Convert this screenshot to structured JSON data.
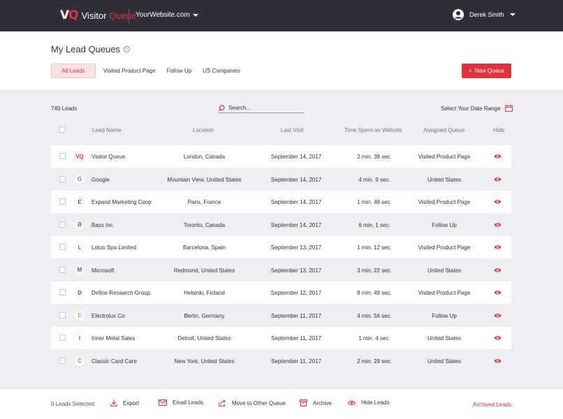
{
  "header": {
    "logo_mark_v": "V",
    "logo_mark_q": "Q",
    "logo_word1": "Visitor",
    "logo_word2": "Queue",
    "site": "YourWebsite.com",
    "user_name": "Derek Smith"
  },
  "page": {
    "title": "My Lead Queues",
    "tabs": [
      "All Leads",
      "Visited Product Page",
      "Follow Up",
      "US Companies"
    ],
    "new_queue_label": "New Queue"
  },
  "toolbar": {
    "lead_count": "749 Leads",
    "search_placeholder": "Search...",
    "date_range_label": "Select Your Date Range"
  },
  "table": {
    "columns": [
      "Lead Name",
      "Location",
      "Last Visit",
      "Time Spent on Website",
      "Assigned Queue",
      "Hide"
    ],
    "rows": [
      {
        "logo": "VQ",
        "name": "Visitor Queue",
        "location": "London, Canada",
        "last_visit": "September 14, 2017",
        "time": "2 min. 38 sec.",
        "queue": "Visited Product Page"
      },
      {
        "logo": "G",
        "name": "Google",
        "location": "Mountain View, Uniited States",
        "last_visit": "September 14, 2017",
        "time": "4 min. 9 sec.",
        "queue": "United States"
      },
      {
        "logo": "E",
        "name": "Expand Marketing Coop",
        "location": "Paris, France",
        "last_visit": "September 14, 2017",
        "time": "1 min. 48 sec.",
        "queue": "Visited Product Page"
      },
      {
        "logo": "B",
        "name": "Bass Inc.",
        "location": "Toronto, Canada",
        "last_visit": "September 14, 2017",
        "time": "6 min. 1 sec.",
        "queue": "Follow Up"
      },
      {
        "logo": "L",
        "name": "Lotus Spa Limited",
        "location": "Barcelona, Spain",
        "last_visit": "September 13, 2017",
        "time": "1 min. 12 sec.",
        "queue": "Visited Product Page"
      },
      {
        "logo": "M",
        "name": "Microsoft",
        "location": "Redmond, United States",
        "last_visit": "September 13, 2017",
        "time": "3 min. 22 sec.",
        "queue": "United States"
      },
      {
        "logo": "D",
        "name": "Define Research Group",
        "location": "Helsinki, Finland",
        "last_visit": "September 12, 2017",
        "time": "8 min. 49 sec.",
        "queue": "Visited Product Page"
      },
      {
        "logo": "E",
        "name": "Electrolux Co",
        "location": "Berlin, Germany",
        "last_visit": "September 11, 2017",
        "time": "4 min. 56 sec.",
        "queue": "Follow Up"
      },
      {
        "logo": "I",
        "name": "Inner Metal Sales",
        "location": "Detroit, United States",
        "last_visit": "September 11, 2017",
        "time": "1 min. 4 sec.",
        "queue": "United States"
      },
      {
        "logo": "C",
        "name": "Classic Card Care",
        "location": "New York, United States",
        "last_visit": "September 11, 2017",
        "time": "2 min. 29 sec.",
        "queue": "United States"
      }
    ]
  },
  "footer": {
    "selected": "0 Leads Selected:",
    "actions": [
      "Export",
      "Email Leads",
      "Move to Other Queue",
      "Archive",
      "Hide Leads"
    ],
    "archived": "Archived Leads"
  },
  "colors": {
    "accent": "#e0333b",
    "header_bg": "#2f2f3a",
    "page_bg": "#efeff3"
  }
}
